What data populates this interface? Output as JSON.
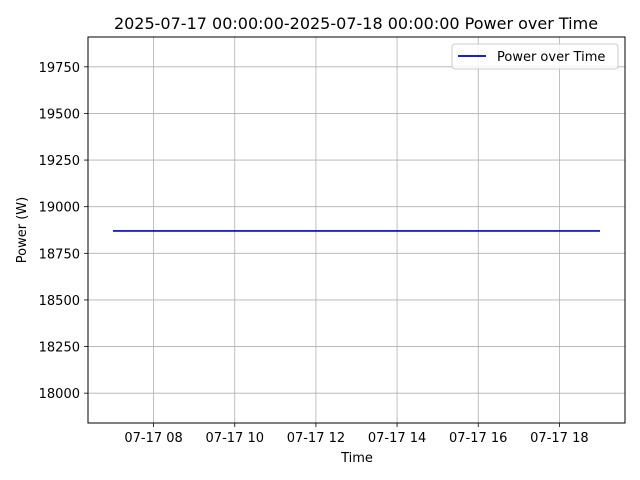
{
  "chart_data": {
    "type": "line",
    "title": "2025-07-17 00:00:00-2025-07-18 00:00:00 Power over Time",
    "xlabel": "Time",
    "ylabel": "Power (W)",
    "x_tick_labels": [
      "07-17 08",
      "07-17 10",
      "07-17 12",
      "07-17 14",
      "07-17 16",
      "07-17 18"
    ],
    "y_tick_labels": [
      "18000",
      "18250",
      "18500",
      "18750",
      "19000",
      "19250",
      "19500",
      "19750"
    ],
    "ylim": [
      17840,
      19910
    ],
    "xlim": [
      "07-17 06:23",
      "07-17 19:37"
    ],
    "grid": true,
    "legend_position": "top-right",
    "series": [
      {
        "name": "Power over Time",
        "color": "#0000cc",
        "x": [
          "07-17 07:00",
          "07-17 19:00"
        ],
        "y": [
          18870,
          18870
        ]
      }
    ]
  }
}
